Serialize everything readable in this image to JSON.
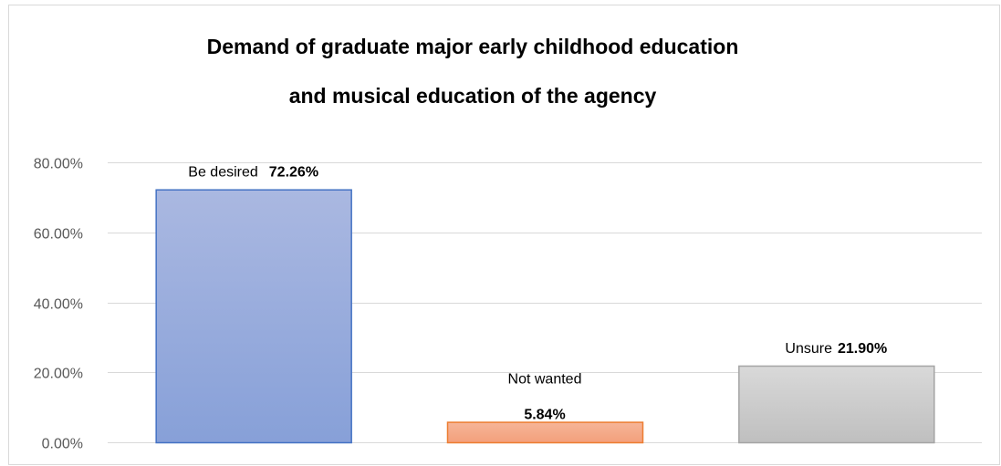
{
  "chart_data": {
    "type": "bar",
    "title_lines": [
      "Demand of graduate major early childhood education",
      "and musical education of the agency"
    ],
    "xlabel": "",
    "ylabel": "",
    "ylim": [
      0,
      0.8
    ],
    "y_ticks": [
      {
        "value": 0.0,
        "label": "0.00%"
      },
      {
        "value": 0.2,
        "label": "20.00%"
      },
      {
        "value": 0.4,
        "label": "40.00%"
      },
      {
        "value": 0.6,
        "label": "60.00%"
      },
      {
        "value": 0.8,
        "label": "80.00%"
      }
    ],
    "grid": true,
    "legend": "none",
    "bars": [
      {
        "label": "Be desired",
        "value": 0.7226,
        "value_text": "72.26%",
        "label_layout": "inline",
        "fill_top": "#aab8e1",
        "fill_bottom": "#87a0d8",
        "stroke": "#4472c4"
      },
      {
        "label": "Not wanted",
        "value": 0.0584,
        "value_text": "5.84%",
        "label_layout": "stacked",
        "fill_top": "#f6b598",
        "fill_bottom": "#f39f7b",
        "stroke": "#ed7d31"
      },
      {
        "label": "Unsure",
        "value": 0.219,
        "value_text": "21.90%",
        "label_layout": "inline",
        "fill_top": "#d9d9d9",
        "fill_bottom": "#bfbfbf",
        "stroke": "#a5a5a5"
      }
    ]
  }
}
